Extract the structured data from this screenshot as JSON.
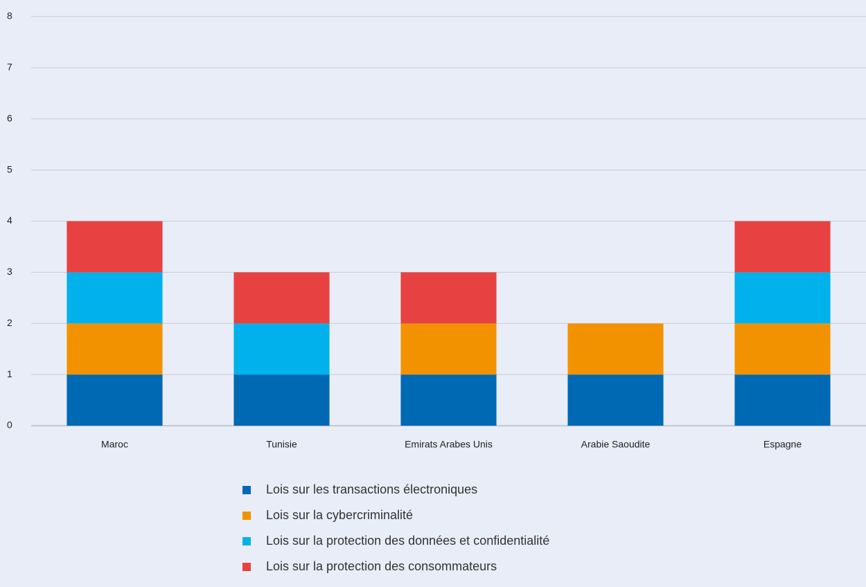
{
  "chart_data": {
    "type": "stacked_bar",
    "categories": [
      "Maroc",
      "Tunisie",
      "Emirats Arabes Unis",
      "Arabie Saoudite",
      "Espagne"
    ],
    "series": [
      {
        "name": "Lois sur les transactions électroniques",
        "color": "#0069b4",
        "values": [
          1,
          1,
          1,
          1,
          1
        ]
      },
      {
        "name": "Lois sur la cybercriminalité",
        "color": "#f39200",
        "values": [
          1,
          0,
          1,
          1,
          1
        ]
      },
      {
        "name": "Lois sur la protection des données et confidentialité",
        "color": "#00b1eb",
        "values": [
          1,
          1,
          0,
          0,
          1
        ]
      },
      {
        "name": "Lois sur la protection des consommateurs",
        "color": "#e84142",
        "values": [
          1,
          1,
          1,
          0,
          1
        ]
      }
    ],
    "ylim": [
      0,
      8
    ],
    "yticks": [
      0,
      1,
      2,
      3,
      4,
      5,
      6,
      7,
      8
    ],
    "grid": true,
    "legend": "bottom"
  }
}
